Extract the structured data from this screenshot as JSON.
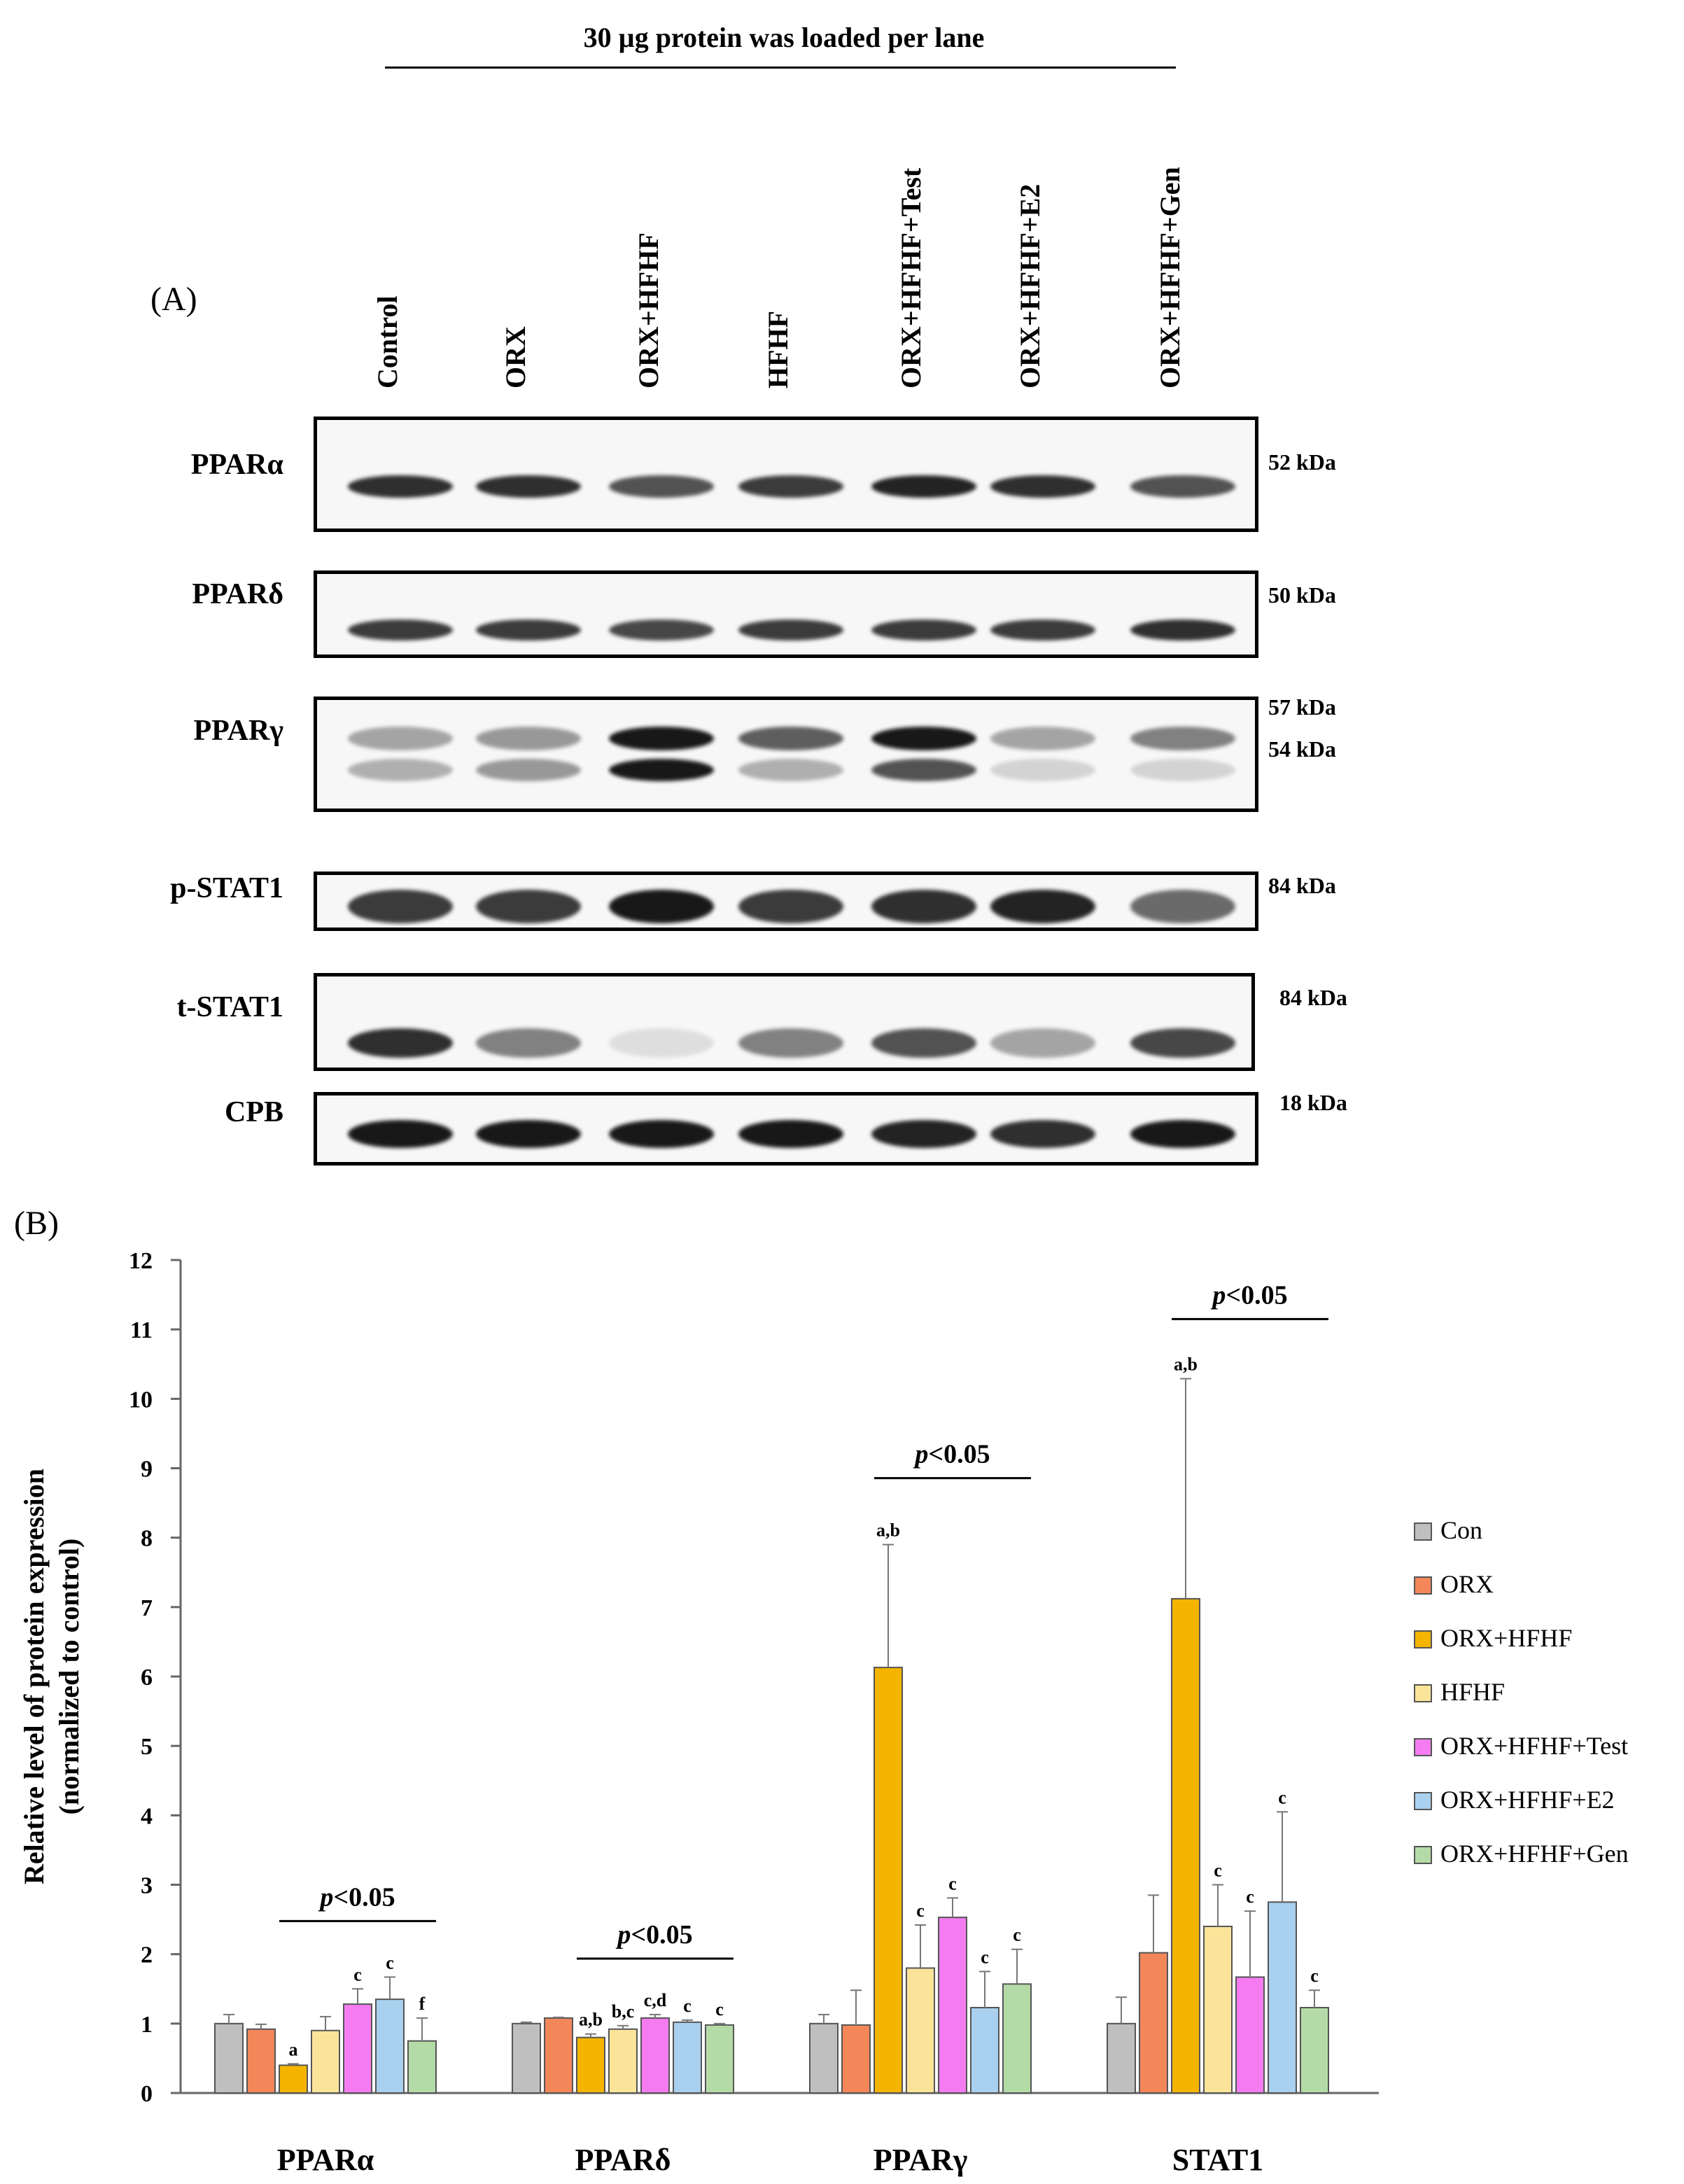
{
  "panel_a": {
    "label": "(A)",
    "loading_note": "30 µg protein was loaded per lane",
    "lanes": [
      "Control",
      "ORX",
      "ORX+HFHF",
      "HFHF",
      "ORX+HFHF+Test",
      "ORX+HFHF+E2",
      "ORX+HFHF+Gen"
    ],
    "rows": [
      {
        "name": "PPARα",
        "kda": [
          "52 kDa"
        ]
      },
      {
        "name": "PPARδ",
        "kda": [
          "50 kDa"
        ]
      },
      {
        "name": "PPARγ",
        "kda": [
          "57 kDa",
          "54 kDa"
        ]
      },
      {
        "name": "p-STAT1",
        "kda": [
          "84 kDa"
        ]
      },
      {
        "name": "t-STAT1",
        "kda": [
          "84 kDa"
        ]
      },
      {
        "name": "CPB",
        "kda": [
          "18 kDa"
        ]
      }
    ],
    "band_intensity": {
      "PPARa": [
        0.85,
        0.85,
        0.7,
        0.8,
        0.9,
        0.85,
        0.7
      ],
      "PPARd": [
        0.8,
        0.8,
        0.75,
        0.8,
        0.8,
        0.8,
        0.85
      ],
      "PPARg_upper": [
        0.35,
        0.4,
        0.95,
        0.65,
        0.95,
        0.35,
        0.5
      ],
      "PPARg_lower": [
        0.3,
        0.4,
        0.95,
        0.3,
        0.7,
        0.15,
        0.15
      ],
      "pSTAT1": [
        0.8,
        0.8,
        0.95,
        0.8,
        0.85,
        0.9,
        0.6
      ],
      "tSTAT1": [
        0.85,
        0.5,
        0.1,
        0.5,
        0.7,
        0.35,
        0.75
      ],
      "CPB": [
        0.95,
        0.95,
        0.95,
        0.95,
        0.9,
        0.85,
        0.95
      ]
    },
    "band_color": "#0d0d0d"
  },
  "panel_b": {
    "label": "(B)",
    "chart_data": {
      "type": "bar",
      "ylabel": "Relative level of protein expression",
      "ylabel2": "(normalized to control)",
      "ylim": [
        0,
        12
      ],
      "yticks": [
        "0",
        "1",
        "2",
        "3",
        "4",
        "5",
        "6",
        "7",
        "8",
        "9",
        "10",
        "11",
        "12"
      ],
      "categories": [
        "PPARα",
        "PPARδ",
        "PPARγ",
        "STAT1"
      ],
      "legend_position": "right",
      "series": [
        {
          "name": "Con",
          "color": "#bfbfbf",
          "values": [
            1.0,
            1.0,
            1.0,
            1.0
          ],
          "errors": [
            0.13,
            0.02,
            0.13,
            0.38
          ],
          "letters": [
            "",
            "",
            "",
            ""
          ]
        },
        {
          "name": "ORX",
          "color": "#f4875a",
          "values": [
            0.92,
            1.08,
            0.98,
            2.02
          ],
          "errors": [
            0.07,
            0.01,
            0.5,
            0.83
          ],
          "letters": [
            "",
            "",
            "",
            ""
          ]
        },
        {
          "name": "ORX+HFHF",
          "color": "#f5b400",
          "values": [
            0.4,
            0.8,
            6.13,
            7.12
          ],
          "errors": [
            0.02,
            0.05,
            1.77,
            3.17
          ],
          "letters": [
            "a",
            "a,b",
            "a,b",
            "a,b"
          ]
        },
        {
          "name": "HFHF",
          "color": "#fbe49a",
          "values": [
            0.9,
            0.92,
            1.8,
            2.4
          ],
          "errors": [
            0.2,
            0.05,
            0.62,
            0.6
          ],
          "letters": [
            "",
            "b,c",
            "c",
            "c"
          ]
        },
        {
          "name": "ORX+HFHF+Test",
          "color": "#f47cf0",
          "values": [
            1.28,
            1.08,
            2.53,
            1.67
          ],
          "errors": [
            0.22,
            0.05,
            0.28,
            0.95
          ],
          "letters": [
            "c",
            "c,d",
            "c",
            "c"
          ]
        },
        {
          "name": "ORX+HFHF+E2",
          "color": "#a9d0ee",
          "values": [
            1.35,
            1.02,
            1.23,
            2.75
          ],
          "errors": [
            0.32,
            0.03,
            0.52,
            1.3
          ],
          "letters": [
            "c",
            "c",
            "c",
            "c"
          ]
        },
        {
          "name": "ORX+HFHF+Gen",
          "color": "#b4dba7",
          "values": [
            0.75,
            0.98,
            1.57,
            1.23
          ],
          "errors": [
            0.33,
            0.02,
            0.5,
            0.25
          ],
          "letters": [
            "f",
            "c",
            "c",
            "c"
          ]
        }
      ],
      "significance": [
        {
          "category_index": 0,
          "from_series": 2,
          "to_series": 6,
          "text_italic": "p",
          "text": "<0.05"
        },
        {
          "category_index": 1,
          "from_series": 2,
          "to_series": 6,
          "text_italic": "p",
          "text": "<0.05"
        },
        {
          "category_index": 2,
          "from_series": 2,
          "to_series": 6,
          "text_italic": "p",
          "text": "<0.05"
        },
        {
          "category_index": 3,
          "from_series": 2,
          "to_series": 6,
          "text_italic": "p",
          "text": "<0.05"
        }
      ]
    }
  }
}
